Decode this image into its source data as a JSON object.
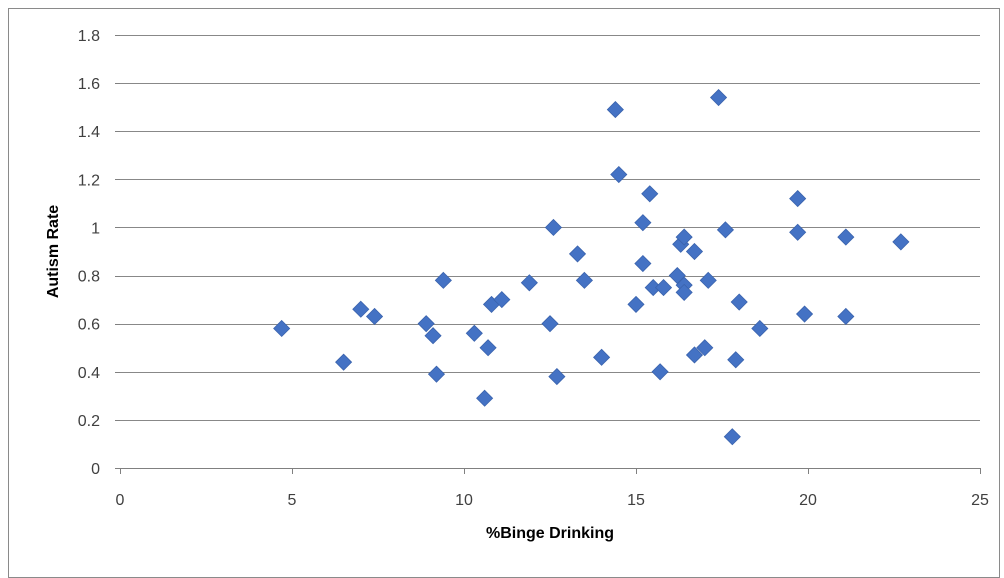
{
  "chart_data": {
    "type": "scatter",
    "title": "",
    "xlabel": "%Binge Drinking",
    "ylabel": "Autism Rate",
    "xlim": [
      0,
      25
    ],
    "ylim": [
      0,
      1.8
    ],
    "xticks": [
      0,
      5,
      10,
      15,
      20,
      25
    ],
    "yticks": [
      0,
      0.2,
      0.4,
      0.6,
      0.8,
      1,
      1.2,
      1.4,
      1.6,
      1.8
    ],
    "grid": "horizontal",
    "legend": "none",
    "marker": "diamond",
    "marker_color": "#4472C4",
    "series": [
      {
        "points": [
          [
            4.7,
            0.58
          ],
          [
            6.5,
            0.44
          ],
          [
            7.0,
            0.66
          ],
          [
            7.4,
            0.63
          ],
          [
            8.9,
            0.6
          ],
          [
            9.1,
            0.55
          ],
          [
            9.2,
            0.39
          ],
          [
            9.4,
            0.78
          ],
          [
            10.3,
            0.56
          ],
          [
            10.6,
            0.29
          ],
          [
            10.7,
            0.5
          ],
          [
            10.8,
            0.68
          ],
          [
            11.1,
            0.7
          ],
          [
            11.9,
            0.77
          ],
          [
            12.5,
            0.6
          ],
          [
            12.6,
            1.0
          ],
          [
            12.7,
            0.38
          ],
          [
            13.3,
            0.89
          ],
          [
            13.5,
            0.78
          ],
          [
            14.0,
            0.46
          ],
          [
            14.4,
            1.49
          ],
          [
            14.5,
            1.22
          ],
          [
            15.0,
            0.68
          ],
          [
            15.2,
            1.02
          ],
          [
            15.2,
            0.85
          ],
          [
            15.4,
            1.14
          ],
          [
            15.5,
            0.75
          ],
          [
            15.7,
            0.4
          ],
          [
            15.8,
            0.75
          ],
          [
            16.2,
            0.8
          ],
          [
            16.3,
            0.93
          ],
          [
            16.4,
            0.96
          ],
          [
            16.4,
            0.76
          ],
          [
            16.4,
            0.73
          ],
          [
            16.7,
            0.9
          ],
          [
            16.7,
            0.47
          ],
          [
            17.0,
            0.5
          ],
          [
            17.1,
            0.78
          ],
          [
            17.4,
            1.54
          ],
          [
            17.6,
            0.99
          ],
          [
            17.8,
            0.13
          ],
          [
            17.9,
            0.45
          ],
          [
            18.0,
            0.69
          ],
          [
            18.6,
            0.58
          ],
          [
            19.7,
            1.12
          ],
          [
            19.7,
            0.98
          ],
          [
            19.9,
            0.64
          ],
          [
            21.1,
            0.96
          ],
          [
            21.1,
            0.63
          ],
          [
            22.7,
            0.94
          ]
        ]
      }
    ]
  }
}
